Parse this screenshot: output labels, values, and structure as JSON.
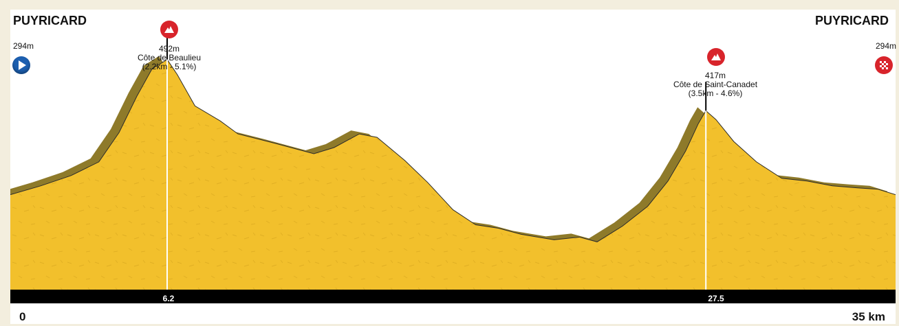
{
  "start": {
    "name": "PUYRICARD",
    "altitude": "294m"
  },
  "finish": {
    "name": "PUYRICARD",
    "altitude": "294m"
  },
  "climbs": [
    {
      "altitude": "492m",
      "name": "Côte de Beaulieu",
      "detail": "(2.2km - 5.1%)",
      "km_label": "6.2"
    },
    {
      "altitude": "417m",
      "name": "Côte de Saint-Canadet",
      "detail": "(3.5km - 4.6%)",
      "km_label": "27.5"
    }
  ],
  "axis": {
    "start_label": "0",
    "end_label": "35 km"
  },
  "colors": {
    "profile": "#f2c02c",
    "shadow": "#8e7a2a",
    "bar": "#000000",
    "climb_icon": "#d8242b",
    "start_icon": "#1c5fb0"
  },
  "icons": {
    "start": "play-icon",
    "finish": "checkered-flag-icon",
    "climb": "mountain-icon"
  },
  "chart_data": {
    "type": "area",
    "x": [
      0,
      1.2,
      2.4,
      3.5,
      4.3,
      5.0,
      5.6,
      6.2,
      6.6,
      7.3,
      8.3,
      9.0,
      10.5,
      12.0,
      12.8,
      13.8,
      14.5,
      15.6,
      16.5,
      17.5,
      18.4,
      19.3,
      20.2,
      21.5,
      22.5,
      23.2,
      24.2,
      25.2,
      26.0,
      26.7,
      27.2,
      27.5,
      27.9,
      28.6,
      29.5,
      30.5,
      31.5,
      32.5,
      33.5,
      34.3,
      35
    ],
    "y": [
      294,
      307,
      322,
      342,
      385,
      438,
      478,
      492,
      470,
      424,
      402,
      383,
      369,
      354,
      363,
      383,
      378,
      344,
      312,
      272,
      250,
      245,
      236,
      228,
      232,
      225,
      248,
      277,
      314,
      358,
      398,
      417,
      404,
      372,
      342,
      318,
      314,
      307,
      304,
      302,
      294
    ],
    "xlim": [
      0,
      35
    ],
    "ylim": [
      150,
      560
    ],
    "climb_markers_km": [
      6.2,
      27.5
    ]
  }
}
